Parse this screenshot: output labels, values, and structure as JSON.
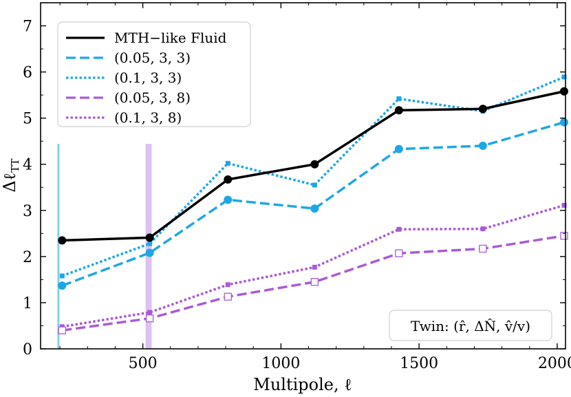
{
  "chart_data": {
    "type": "line",
    "xlabel": "Multipole, ℓ",
    "ylabel": "Δℓ_TT",
    "xlim": [
      130,
      2030
    ],
    "ylim": [
      0,
      7.5
    ],
    "x_ticks": [
      500,
      1000,
      1500,
      2000
    ],
    "x_tick_labels": [
      "500",
      "1000",
      "1500",
      "2000"
    ],
    "y_ticks": [
      0,
      1,
      2,
      3,
      4,
      5,
      6,
      7
    ],
    "y_tick_labels": [
      "0",
      "1",
      "2",
      "3",
      "4",
      "5",
      "6",
      "7"
    ],
    "x": [
      208,
      525,
      808,
      1122,
      1427,
      1731,
      2025
    ],
    "series": [
      {
        "name": "MTH−like Fluid",
        "color": "#000000",
        "dash": "solid",
        "marker": "circle",
        "values": [
          2.35,
          2.41,
          3.67,
          4.0,
          5.17,
          5.2,
          5.58
        ]
      },
      {
        "name": "(0.05, 3, 3)",
        "color": "#1ea7e6",
        "dash": "dashed",
        "marker": "circle",
        "values": [
          1.37,
          2.08,
          3.23,
          3.04,
          4.33,
          4.4,
          4.91
        ]
      },
      {
        "name": "(0.1, 3, 3)",
        "color": "#1ea7e6",
        "dash": "dotted",
        "marker": "square",
        "values": [
          1.58,
          2.28,
          4.02,
          3.55,
          5.42,
          5.15,
          5.89
        ]
      },
      {
        "name": "(0.05, 3, 8)",
        "color": "#a95ad9",
        "dash": "dashed",
        "marker": "open-square",
        "values": [
          0.4,
          0.66,
          1.13,
          1.45,
          2.07,
          2.17,
          2.45
        ]
      },
      {
        "name": "(0.1, 3, 8)",
        "color": "#a95ad9",
        "dash": "dotted",
        "marker": "square",
        "values": [
          0.48,
          0.79,
          1.39,
          1.77,
          2.59,
          2.6,
          3.11
        ]
      }
    ],
    "vertical_bands": [
      {
        "x_range": [
          191,
          198
        ],
        "color": "#66c4ee"
      },
      {
        "x_range": [
          510,
          532
        ],
        "color": "#d6b6f0"
      }
    ],
    "annotation": "Twin: (r̂, ΔN̂, v̂/v)",
    "legend_position": "upper-left",
    "grid": false
  }
}
